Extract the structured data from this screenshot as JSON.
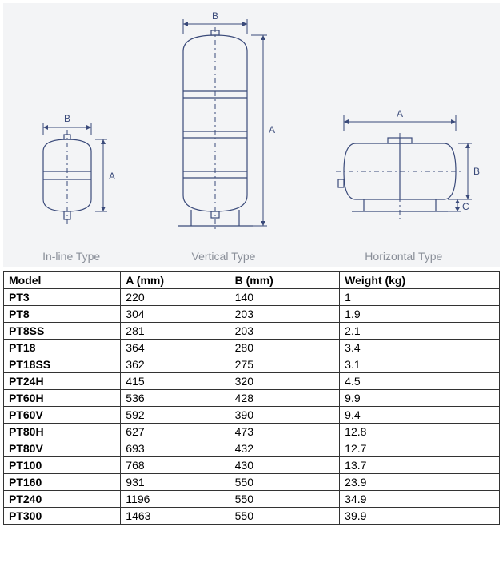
{
  "diagrams": {
    "background_color": "#f3f4f6",
    "stroke_color": "#3a4a7a",
    "label_color": "#8a8f99",
    "types": [
      {
        "label": "In-line Type",
        "dims": [
          "A",
          "B"
        ]
      },
      {
        "label": "Vertical Type",
        "dims": [
          "A",
          "B"
        ]
      },
      {
        "label": "Horizontal Type",
        "dims": [
          "A",
          "B",
          "C"
        ]
      }
    ],
    "dim_letters": {
      "A": "A",
      "B": "B",
      "C": "C"
    }
  },
  "table": {
    "columns": [
      "Model",
      "A (mm)",
      "B (mm)",
      "Weight (kg)"
    ],
    "col_widths_pct": [
      25,
      25,
      25,
      25
    ],
    "header_bold": true,
    "rows": [
      [
        "PT3",
        "220",
        "140",
        "1"
      ],
      [
        "PT8",
        "304",
        "203",
        "1.9"
      ],
      [
        "PT8SS",
        "281",
        "203",
        "2.1"
      ],
      [
        "PT18",
        "364",
        "280",
        "3.4"
      ],
      [
        "PT18SS",
        "362",
        "275",
        "3.1"
      ],
      [
        "PT24H",
        "415",
        "320",
        "4.5"
      ],
      [
        "PT60H",
        "536",
        "428",
        "9.9"
      ],
      [
        "PT60V",
        "592",
        "390",
        "9.4"
      ],
      [
        "PT80H",
        "627",
        "473",
        "12.8"
      ],
      [
        "PT80V",
        "693",
        "432",
        "12.7"
      ],
      [
        "PT100",
        "768",
        "430",
        "13.7"
      ],
      [
        "PT160",
        "931",
        "550",
        "23.9"
      ],
      [
        "PT240",
        "1196",
        "550",
        "34.9"
      ],
      [
        "PT300",
        "1463",
        "550",
        "39.9"
      ]
    ]
  }
}
